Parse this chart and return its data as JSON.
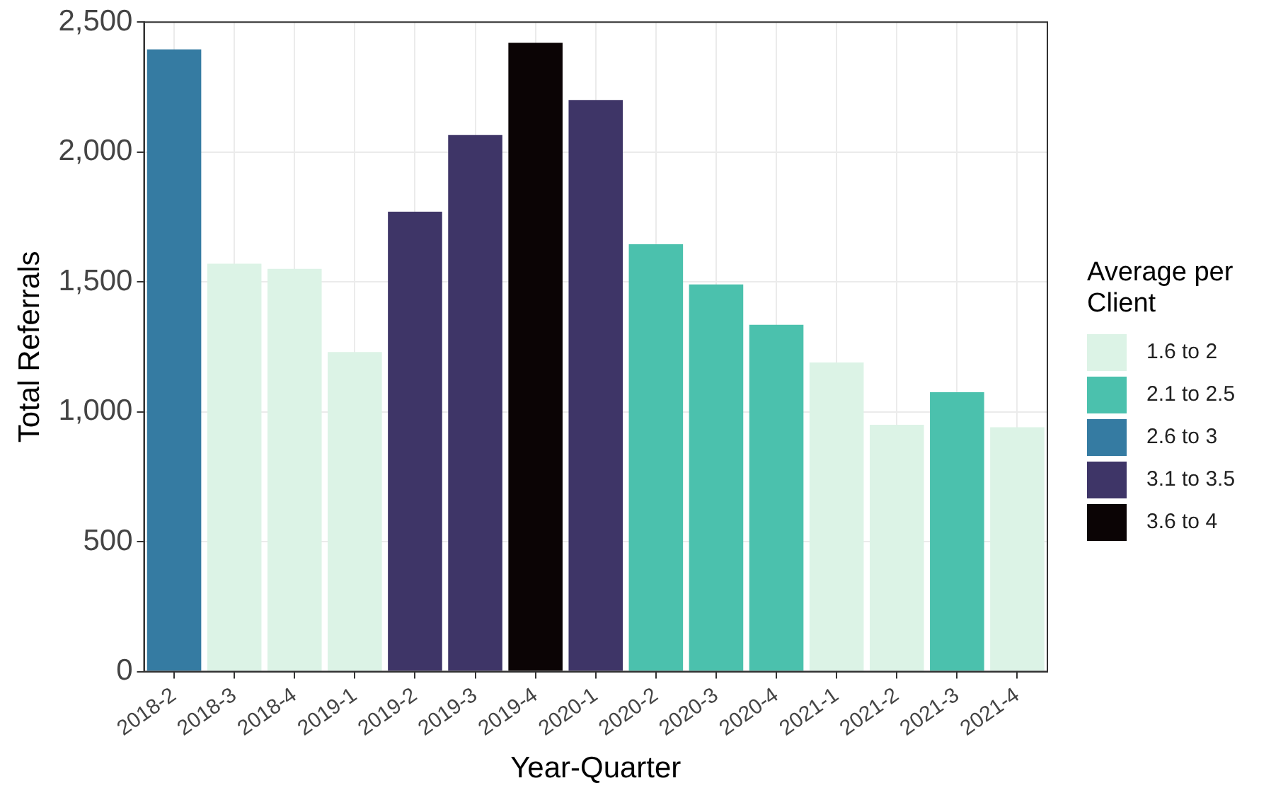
{
  "chart_data": {
    "type": "bar",
    "xlabel": "Year-Quarter",
    "ylabel": "Total Referrals",
    "legend_title": "Average per Client",
    "categories": [
      "2018-2",
      "2018-3",
      "2018-4",
      "2019-1",
      "2019-2",
      "2019-3",
      "2019-4",
      "2020-1",
      "2020-2",
      "2020-3",
      "2020-4",
      "2021-1",
      "2021-2",
      "2021-3",
      "2021-4"
    ],
    "series": [
      {
        "name": "1.6 to 2",
        "color": "#dcf3e6",
        "values": [
          null,
          1570,
          1550,
          1230,
          null,
          null,
          null,
          null,
          null,
          null,
          null,
          1190,
          950,
          null,
          940
        ]
      },
      {
        "name": "2.1 to 2.5",
        "color": "#4bc1ad",
        "values": [
          null,
          null,
          null,
          null,
          null,
          null,
          null,
          null,
          1645,
          1490,
          1335,
          null,
          null,
          1075,
          null
        ]
      },
      {
        "name": "2.6 to 3",
        "color": "#357ba2",
        "values": [
          2395,
          null,
          null,
          null,
          null,
          null,
          null,
          null,
          null,
          null,
          null,
          null,
          null,
          null,
          null
        ]
      },
      {
        "name": "3.1 to 3.5",
        "color": "#3e3567",
        "values": [
          null,
          null,
          null,
          null,
          1770,
          2065,
          null,
          2200,
          null,
          null,
          null,
          null,
          null,
          null,
          null
        ]
      },
      {
        "name": "3.6 to 4",
        "color": "#0b0405",
        "values": [
          null,
          null,
          null,
          null,
          null,
          null,
          2420,
          null,
          null,
          null,
          null,
          null,
          null,
          null,
          null
        ]
      }
    ],
    "stacked": true,
    "ylim": [
      0,
      2500
    ],
    "yticks": [
      0,
      500,
      {
        "value": 1000,
        "label": "1,000"
      },
      {
        "value": 1500,
        "label": "1,500"
      },
      {
        "value": 2000,
        "label": "2,000"
      },
      {
        "value": 2500,
        "label": "2,500"
      }
    ],
    "grid": true,
    "legend": "right"
  }
}
